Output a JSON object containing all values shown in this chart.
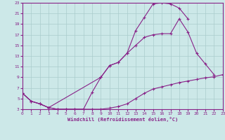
{
  "bg_color": "#cce8e8",
  "grid_color": "#aacccc",
  "line_color": "#882288",
  "xlabel": "Windchill (Refroidissement éolien,°C)",
  "xlim": [
    0,
    23
  ],
  "ylim": [
    3,
    23
  ],
  "yticks": [
    3,
    5,
    7,
    9,
    11,
    13,
    15,
    17,
    19,
    21,
    23
  ],
  "xticks": [
    0,
    1,
    2,
    3,
    4,
    5,
    6,
    7,
    8,
    9,
    10,
    11,
    12,
    13,
    14,
    15,
    16,
    17,
    18,
    19,
    20,
    21,
    22,
    23
  ],
  "line1_x": [
    0,
    1,
    2,
    3,
    4,
    5,
    6,
    7,
    8,
    9,
    10,
    11,
    12,
    13,
    14,
    15,
    16,
    17,
    18,
    19,
    20,
    21,
    22,
    23
  ],
  "line1_y": [
    6.0,
    4.5,
    4.0,
    3.3,
    3.0,
    3.0,
    3.0,
    3.0,
    3.0,
    3.0,
    3.2,
    3.5,
    4.0,
    5.0,
    6.0,
    6.8,
    7.2,
    7.6,
    8.0,
    8.3,
    8.6,
    8.9,
    9.1,
    9.5
  ],
  "line2_x": [
    0,
    1,
    2,
    3,
    4,
    5,
    6,
    7,
    8,
    9,
    10,
    11,
    12,
    13,
    14,
    15,
    16,
    17,
    18,
    19,
    20,
    21,
    22
  ],
  "line2_y": [
    6.0,
    4.5,
    4.0,
    3.3,
    3.0,
    3.0,
    3.0,
    3.0,
    6.2,
    9.0,
    11.2,
    11.8,
    13.5,
    15.0,
    16.5,
    17.0,
    17.2,
    17.2,
    20.0,
    17.5,
    13.5,
    11.5,
    9.5
  ],
  "line3_x": [
    0,
    1,
    2,
    3,
    9,
    10,
    11,
    12,
    13,
    14,
    15,
    16,
    17,
    18,
    19
  ],
  "line3_y": [
    6.0,
    4.5,
    4.0,
    3.3,
    9.0,
    11.2,
    11.8,
    13.5,
    17.8,
    20.3,
    22.8,
    23.0,
    22.8,
    22.0,
    20.0
  ]
}
